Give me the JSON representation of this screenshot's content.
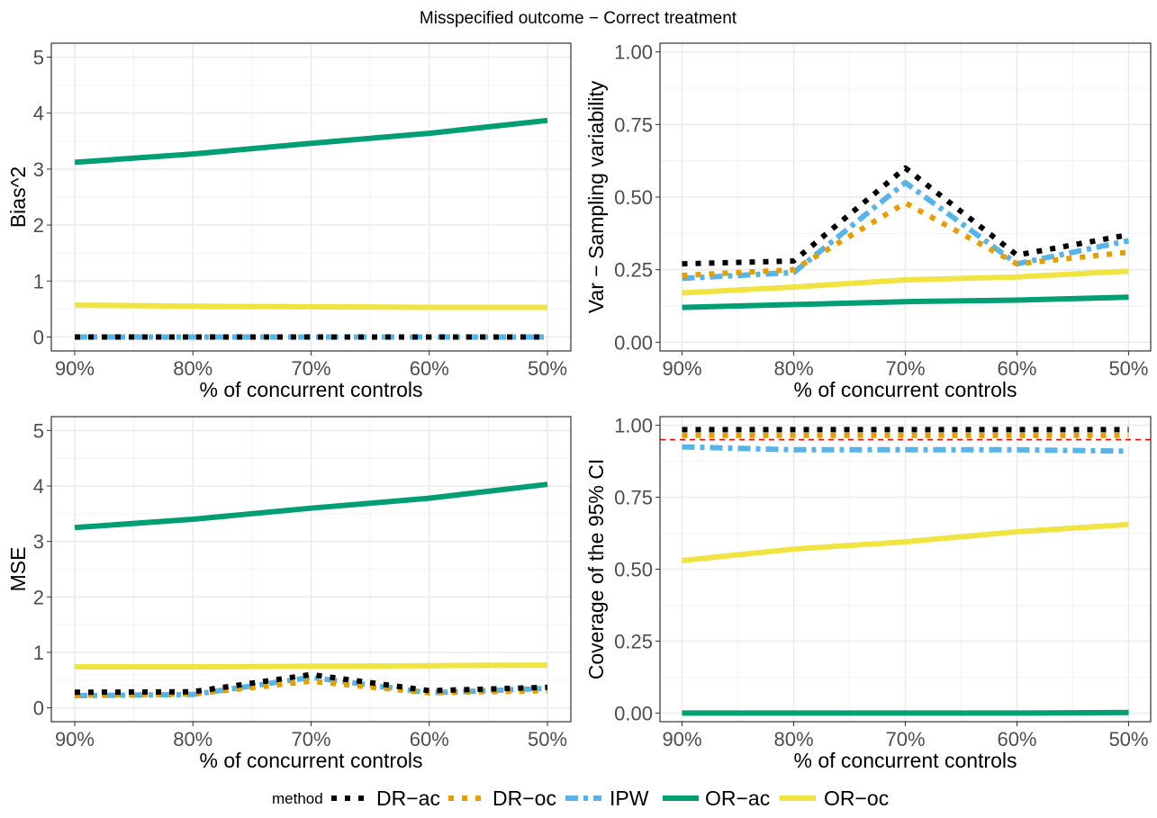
{
  "title": "Misspecified outcome − Correct treatment",
  "legend": {
    "title": "method",
    "items": [
      {
        "key": "DR-ac",
        "label": "DR−ac"
      },
      {
        "key": "DR-oc",
        "label": "DR−oc"
      },
      {
        "key": "IPW",
        "label": "IPW"
      },
      {
        "key": "OR-ac",
        "label": "OR−ac"
      },
      {
        "key": "OR-oc",
        "label": "OR−oc"
      }
    ]
  },
  "series_style": {
    "DR-ac": {
      "color": "#000000",
      "dash": "dotted"
    },
    "DR-oc": {
      "color": "#E69F00",
      "dash": "dotted"
    },
    "IPW": {
      "color": "#56B4E9",
      "dash": "dashdot"
    },
    "OR-ac": {
      "color": "#009E73",
      "dash": "solid"
    },
    "OR-oc": {
      "color": "#F0E442",
      "dash": "solid"
    }
  },
  "chart_data": [
    {
      "id": "bias2",
      "type": "line",
      "title": "",
      "xlabel": "% of concurrent controls",
      "ylabel": "Bias^2",
      "categories": [
        "90%",
        "80%",
        "70%",
        "60%",
        "50%"
      ],
      "ylim": [
        -0.25,
        5.25
      ],
      "yticks": [
        0,
        1,
        2,
        3,
        4,
        5
      ],
      "ytick_labels": [
        "0",
        "1",
        "2",
        "3",
        "4",
        "5"
      ],
      "series": [
        {
          "name": "DR-ac",
          "values": [
            0.0,
            0.0,
            0.0,
            0.0,
            0.0
          ]
        },
        {
          "name": "DR-oc",
          "values": [
            0.0,
            0.0,
            0.0,
            0.0,
            0.0
          ]
        },
        {
          "name": "IPW",
          "values": [
            0.0,
            0.0,
            0.0,
            0.0,
            0.0
          ]
        },
        {
          "name": "OR-ac",
          "values": [
            3.12,
            3.27,
            3.46,
            3.64,
            3.87
          ]
        },
        {
          "name": "OR-oc",
          "values": [
            0.57,
            0.55,
            0.54,
            0.53,
            0.53
          ]
        }
      ]
    },
    {
      "id": "variance",
      "type": "line",
      "title": "",
      "xlabel": "% of concurrent controls",
      "ylabel": "Var − Sampling variability",
      "categories": [
        "90%",
        "80%",
        "70%",
        "60%",
        "50%"
      ],
      "ylim": [
        -0.03,
        1.03
      ],
      "yticks": [
        0,
        0.25,
        0.5,
        0.75,
        1.0
      ],
      "ytick_labels": [
        "0.00",
        "0.25",
        "0.50",
        "0.75",
        "1.00"
      ],
      "series": [
        {
          "name": "DR-ac",
          "values": [
            0.27,
            0.28,
            0.6,
            0.3,
            0.37
          ]
        },
        {
          "name": "DR-oc",
          "values": [
            0.23,
            0.25,
            0.48,
            0.27,
            0.31
          ]
        },
        {
          "name": "IPW",
          "values": [
            0.22,
            0.24,
            0.55,
            0.27,
            0.35
          ]
        },
        {
          "name": "OR-ac",
          "values": [
            0.12,
            0.13,
            0.14,
            0.145,
            0.155
          ]
        },
        {
          "name": "OR-oc",
          "values": [
            0.17,
            0.19,
            0.215,
            0.225,
            0.245
          ]
        }
      ]
    },
    {
      "id": "mse",
      "type": "line",
      "title": "",
      "xlabel": "% of concurrent controls",
      "ylabel": "MSE",
      "categories": [
        "90%",
        "80%",
        "70%",
        "60%",
        "50%"
      ],
      "ylim": [
        -0.25,
        5.25
      ],
      "yticks": [
        0,
        1,
        2,
        3,
        4,
        5
      ],
      "ytick_labels": [
        "0",
        "1",
        "2",
        "3",
        "4",
        "5"
      ],
      "series": [
        {
          "name": "DR-ac",
          "values": [
            0.28,
            0.29,
            0.6,
            0.31,
            0.37
          ]
        },
        {
          "name": "DR-oc",
          "values": [
            0.23,
            0.25,
            0.48,
            0.27,
            0.31
          ]
        },
        {
          "name": "IPW",
          "values": [
            0.22,
            0.24,
            0.55,
            0.27,
            0.35
          ]
        },
        {
          "name": "OR-ac",
          "values": [
            3.25,
            3.4,
            3.6,
            3.78,
            4.03
          ]
        },
        {
          "name": "OR-oc",
          "values": [
            0.74,
            0.74,
            0.75,
            0.76,
            0.77
          ]
        }
      ]
    },
    {
      "id": "coverage",
      "type": "line",
      "title": "",
      "xlabel": "% of concurrent controls",
      "ylabel": "Coverage of the 95% CI",
      "categories": [
        "90%",
        "80%",
        "70%",
        "60%",
        "50%"
      ],
      "ylim": [
        -0.03,
        1.03
      ],
      "yticks": [
        0,
        0.25,
        0.5,
        0.75,
        1.0
      ],
      "ytick_labels": [
        "0.00",
        "0.25",
        "0.50",
        "0.75",
        "1.00"
      ],
      "reference_line": {
        "y": 0.95,
        "color": "#FF0000",
        "style": "dashed"
      },
      "series": [
        {
          "name": "DR-ac",
          "values": [
            0.985,
            0.985,
            0.985,
            0.985,
            0.985
          ]
        },
        {
          "name": "DR-oc",
          "values": [
            0.965,
            0.965,
            0.965,
            0.965,
            0.965
          ]
        },
        {
          "name": "IPW",
          "values": [
            0.925,
            0.915,
            0.915,
            0.915,
            0.91
          ]
        },
        {
          "name": "OR-ac",
          "values": [
            0.0,
            0.0,
            0.0,
            0.0,
            0.002
          ]
        },
        {
          "name": "OR-oc",
          "values": [
            0.53,
            0.57,
            0.595,
            0.63,
            0.655
          ]
        }
      ]
    }
  ]
}
